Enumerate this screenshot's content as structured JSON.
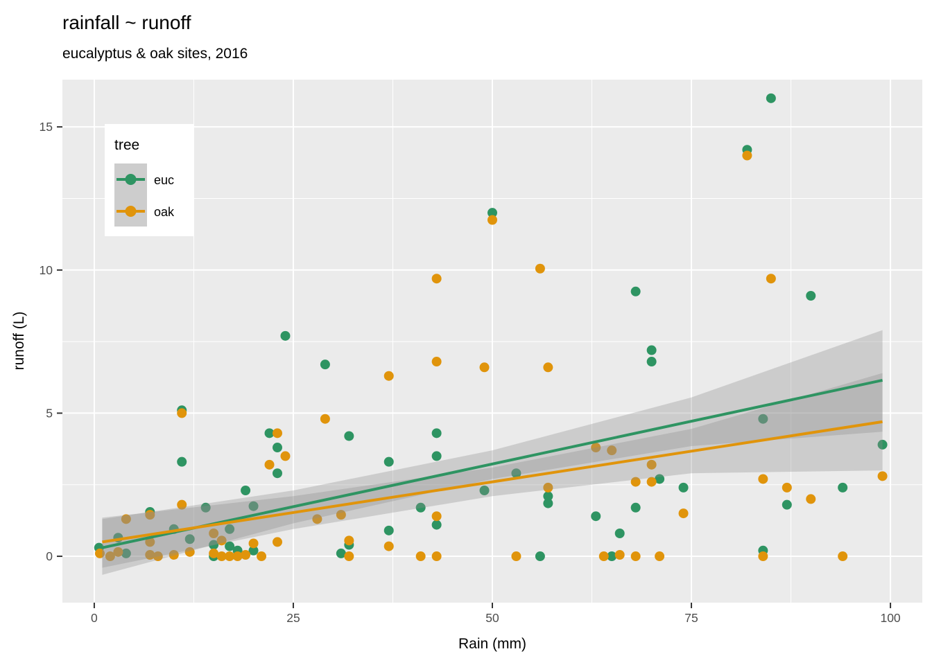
{
  "title": "rainfall ~ runoff",
  "subtitle": "eucalyptus & oak sites, 2016",
  "chart_data": {
    "type": "scatter",
    "title": "rainfall ~ runoff",
    "subtitle": "eucalyptus & oak sites, 2016",
    "xlabel": "Rain (mm)",
    "ylabel": "runoff (L)",
    "x_ticks": [
      0,
      25,
      50,
      75,
      100
    ],
    "y_ticks": [
      0,
      5,
      10,
      15
    ],
    "x_minor_ticks": [
      12.5,
      37.5,
      62.5,
      87.5
    ],
    "y_minor_ticks": [
      2.5,
      7.5,
      12.5
    ],
    "xlim": [
      -4,
      104
    ],
    "ylim": [
      -1.62,
      16.65
    ],
    "grid": true,
    "panel_bg": "#EBEBEB",
    "grid_color": "#FFFFFF",
    "tick_mark_color": "#333333",
    "ribbon_color": "#8C8C8C",
    "ribbon_opacity": 0.32,
    "point_radius": 7,
    "line_width": 4,
    "legend": {
      "title": "tree",
      "position": "inside-top-left",
      "key_bg": "#CDCDCD",
      "entries": [
        {
          "label": "euc",
          "color": "#2E9462"
        },
        {
          "label": "oak",
          "color": "#E0940B"
        }
      ]
    },
    "series": [
      {
        "name": "euc",
        "color": "#2E9462",
        "points": [
          [
            0.6,
            0.3
          ],
          [
            3,
            0.65
          ],
          [
            4,
            0.1
          ],
          [
            7,
            1.55
          ],
          [
            10,
            0.95
          ],
          [
            11,
            5.1
          ],
          [
            11,
            3.3
          ],
          [
            12,
            0.6
          ],
          [
            14,
            1.7
          ],
          [
            15,
            0.4
          ],
          [
            15,
            0
          ],
          [
            17,
            0.95
          ],
          [
            17,
            0.35
          ],
          [
            18,
            0.2
          ],
          [
            19,
            2.3
          ],
          [
            20,
            1.75
          ],
          [
            20,
            0.2
          ],
          [
            22,
            4.3
          ],
          [
            23,
            3.8
          ],
          [
            23,
            2.9
          ],
          [
            24,
            7.7
          ],
          [
            29,
            6.7
          ],
          [
            31,
            0.1
          ],
          [
            32,
            4.2
          ],
          [
            32,
            0.4
          ],
          [
            37,
            3.3
          ],
          [
            37,
            0.9
          ],
          [
            41,
            1.7
          ],
          [
            43,
            4.3
          ],
          [
            43,
            3.5
          ],
          [
            43,
            1.1
          ],
          [
            49,
            2.3
          ],
          [
            50,
            12
          ],
          [
            53,
            2.9
          ],
          [
            56,
            0
          ],
          [
            57,
            2.1
          ],
          [
            57,
            1.85
          ],
          [
            63,
            1.4
          ],
          [
            65,
            0
          ],
          [
            66,
            0.8
          ],
          [
            68,
            9.25
          ],
          [
            68,
            1.7
          ],
          [
            70,
            7.2
          ],
          [
            70,
            6.8
          ],
          [
            71,
            2.7
          ],
          [
            74,
            2.4
          ],
          [
            82,
            14.2
          ],
          [
            84,
            4.8
          ],
          [
            84,
            0.2
          ],
          [
            85,
            16
          ],
          [
            87,
            1.8
          ],
          [
            90,
            9.1
          ],
          [
            94,
            2.4
          ],
          [
            99,
            3.9
          ]
        ],
        "trend": {
          "x": [
            1,
            99
          ],
          "y": [
            0.3,
            6.15
          ]
        },
        "ribbon": {
          "x": [
            1,
            25,
            50,
            75,
            99
          ],
          "lo": [
            -0.65,
            1.15,
            2.7,
            3.85,
            4.35
          ],
          "hi": [
            1.3,
            2.3,
            3.7,
            5.55,
            7.9
          ]
        }
      },
      {
        "name": "oak",
        "color": "#E0940B",
        "points": [
          [
            0.7,
            0.1
          ],
          [
            2,
            0
          ],
          [
            3,
            0.15
          ],
          [
            4,
            1.3
          ],
          [
            7,
            1.45
          ],
          [
            7,
            0.5
          ],
          [
            7,
            0.05
          ],
          [
            8,
            0
          ],
          [
            10,
            0.05
          ],
          [
            11,
            5
          ],
          [
            11,
            1.8
          ],
          [
            12,
            0.15
          ],
          [
            15,
            0.8
          ],
          [
            15,
            0.1
          ],
          [
            16,
            0.55
          ],
          [
            16,
            0
          ],
          [
            17,
            0
          ],
          [
            18,
            0
          ],
          [
            19,
            0.05
          ],
          [
            20,
            0.45
          ],
          [
            21,
            0
          ],
          [
            22,
            3.2
          ],
          [
            23,
            4.3
          ],
          [
            23,
            0.5
          ],
          [
            24,
            3.5
          ],
          [
            28,
            1.3
          ],
          [
            29,
            4.8
          ],
          [
            31,
            1.45
          ],
          [
            32,
            0.55
          ],
          [
            32,
            0
          ],
          [
            37,
            6.3
          ],
          [
            37,
            0.35
          ],
          [
            41,
            0
          ],
          [
            43,
            9.7
          ],
          [
            43,
            6.8
          ],
          [
            43,
            1.4
          ],
          [
            43,
            0
          ],
          [
            49,
            6.6
          ],
          [
            50,
            11.75
          ],
          [
            53,
            0
          ],
          [
            56,
            10.05
          ],
          [
            57,
            6.6
          ],
          [
            57,
            2.4
          ],
          [
            63,
            3.8
          ],
          [
            64,
            0
          ],
          [
            65,
            3.7
          ],
          [
            66,
            0.05
          ],
          [
            68,
            2.6
          ],
          [
            68,
            0
          ],
          [
            70,
            3.2
          ],
          [
            70,
            2.6
          ],
          [
            71,
            0
          ],
          [
            74,
            1.5
          ],
          [
            82,
            14
          ],
          [
            84,
            2.7
          ],
          [
            84,
            0
          ],
          [
            85,
            9.7
          ],
          [
            87,
            2.4
          ],
          [
            90,
            2
          ],
          [
            94,
            0
          ],
          [
            99,
            2.8
          ]
        ],
        "trend": {
          "x": [
            1,
            99
          ],
          "y": [
            0.5,
            4.7
          ]
        },
        "ribbon": {
          "x": [
            1,
            25,
            50,
            75,
            99
          ],
          "lo": [
            -0.4,
            0.95,
            2.1,
            2.9,
            3.0
          ],
          "hi": [
            1.35,
            2.1,
            3.1,
            4.45,
            6.4
          ]
        }
      }
    ]
  }
}
